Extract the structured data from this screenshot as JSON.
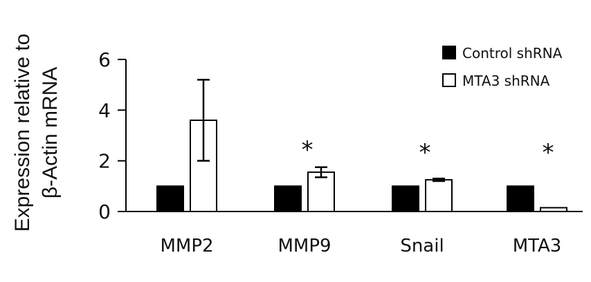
{
  "chart_data": {
    "type": "bar",
    "ylabel_line1": "Expression relative to",
    "ylabel_line2": "β-Actin mRNA",
    "xlabel": "",
    "ylim": [
      0,
      6
    ],
    "yticks": [
      0,
      2,
      4,
      6
    ],
    "grid": false,
    "legend_position": "top-right",
    "categories": [
      "MMP2",
      "MMP9",
      "Snail",
      "MTA3"
    ],
    "series": [
      {
        "name": "Control shRNA",
        "values": [
          1.0,
          1.0,
          1.0,
          1.0
        ],
        "errors": [
          0.0,
          0.0,
          0.0,
          0.0
        ],
        "fill": "#000000"
      },
      {
        "name": "MTA3 shRNA",
        "values": [
          3.6,
          1.55,
          1.25,
          0.15
        ],
        "errors": [
          1.6,
          0.2,
          0.05,
          0.0
        ],
        "fill": "#ffffff"
      }
    ],
    "significance": [
      "",
      "*",
      "*",
      "*"
    ]
  }
}
